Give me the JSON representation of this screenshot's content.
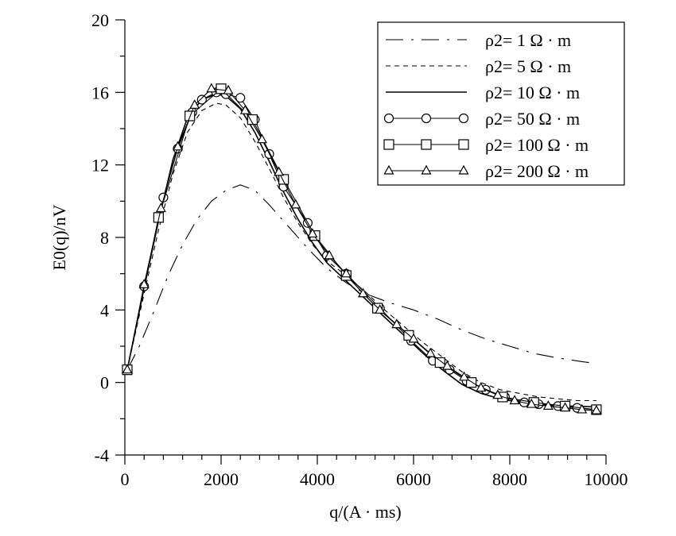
{
  "chart_data": {
    "type": "line",
    "xlabel": "q/(A · ms)",
    "ylabel": "E0(q)/nV",
    "xlim": [
      0,
      10000
    ],
    "ylim": [
      -4,
      20
    ],
    "xticks": [
      0,
      2000,
      4000,
      6000,
      8000,
      10000
    ],
    "yticks": [
      -4,
      0,
      4,
      8,
      12,
      16,
      20
    ],
    "grid": false,
    "legend_position": "top-right",
    "series": [
      {
        "name": "ρ2= 1 Ω · m",
        "line_style": "dashdot",
        "marker": "none",
        "x": [
          50,
          300,
          600,
          900,
          1200,
          1500,
          1800,
          2100,
          2400,
          2700,
          3000,
          3400,
          3800,
          4200,
          4600,
          5000,
          5500,
          6000,
          6500,
          7000,
          7500,
          8000,
          8500,
          9000,
          9500,
          9800
        ],
        "y": [
          0.7,
          2.0,
          3.9,
          5.9,
          7.6,
          9.0,
          10.0,
          10.6,
          10.9,
          10.6,
          9.8,
          8.6,
          7.4,
          6.3,
          5.5,
          4.9,
          4.4,
          4.0,
          3.5,
          2.9,
          2.4,
          2.0,
          1.6,
          1.35,
          1.15,
          1.05
        ]
      },
      {
        "name": "ρ2= 5 Ω · m",
        "line_style": "dashed",
        "marker": "none",
        "x": [
          50,
          400,
          700,
          1000,
          1300,
          1600,
          1900,
          2100,
          2400,
          2700,
          3000,
          3300,
          3600,
          3900,
          4200,
          4600,
          5000,
          5400,
          5800,
          6200,
          6600,
          7000,
          7400,
          7800,
          8200,
          8600,
          9000,
          9400,
          9800
        ],
        "y": [
          0.7,
          4.9,
          8.4,
          11.5,
          13.8,
          15.0,
          15.4,
          15.3,
          14.6,
          13.3,
          11.8,
          10.2,
          8.8,
          7.6,
          6.7,
          5.9,
          5.0,
          4.0,
          3.1,
          2.2,
          1.4,
          0.6,
          0.0,
          -0.4,
          -0.6,
          -0.8,
          -0.9,
          -1.0,
          -1.0
        ]
      },
      {
        "name": "ρ2= 10 Ω · m",
        "line_style": "solid",
        "marker": "none",
        "x": [
          50,
          400,
          700,
          1000,
          1300,
          1600,
          1900,
          2100,
          2400,
          2700,
          3000,
          3300,
          3600,
          3900,
          4200,
          4600,
          5000,
          5400,
          5800,
          6200,
          6600,
          7000,
          7400,
          7800,
          8200,
          8600,
          9000,
          9400,
          9800
        ],
        "y": [
          0.7,
          5.2,
          8.9,
          12.3,
          14.6,
          15.6,
          15.9,
          15.8,
          15.1,
          13.8,
          12.2,
          10.5,
          9.0,
          7.7,
          6.6,
          5.6,
          4.6,
          3.6,
          2.6,
          1.6,
          0.7,
          -0.1,
          -0.6,
          -0.9,
          -1.1,
          -1.2,
          -1.3,
          -1.3,
          -1.35
        ]
      },
      {
        "name": "ρ2= 50 Ω · m",
        "line_style": "solid",
        "marker": "circle",
        "x": [
          50,
          400,
          800,
          1100,
          1400,
          1600,
          1900,
          2100,
          2400,
          2700,
          3000,
          3300,
          3800,
          4200,
          4600,
          5300,
          5950,
          6400,
          6750,
          7100,
          7500,
          7900,
          8300,
          8600,
          9000,
          9400,
          9800
        ],
        "y": [
          0.7,
          5.3,
          10.2,
          12.9,
          14.9,
          15.6,
          16.0,
          15.9,
          15.7,
          14.5,
          12.6,
          10.8,
          8.8,
          7.0,
          6.0,
          4.1,
          2.3,
          1.2,
          0.7,
          0.1,
          -0.4,
          -0.8,
          -1.1,
          -1.2,
          -1.3,
          -1.4,
          -1.5
        ]
      },
      {
        "name": "ρ2= 100 Ω · m",
        "line_style": "solid",
        "marker": "square",
        "x": [
          50,
          700,
          1350,
          2000,
          2650,
          3300,
          3950,
          4600,
          5250,
          5900,
          6550,
          7200,
          7850,
          8500,
          9150,
          9800
        ],
        "y": [
          0.7,
          9.1,
          14.7,
          16.2,
          14.5,
          11.2,
          8.1,
          5.9,
          4.1,
          2.6,
          1.1,
          0.0,
          -0.8,
          -1.1,
          -1.3,
          -1.5
        ]
      },
      {
        "name": "ρ2= 200 Ω · m",
        "line_style": "solid",
        "marker": "triangle",
        "x": [
          50,
          400,
          750,
          1100,
          1450,
          1800,
          2150,
          2500,
          2850,
          3200,
          3550,
          3900,
          4250,
          4600,
          4950,
          5300,
          5650,
          6000,
          6350,
          6700,
          7050,
          7400,
          7750,
          8100,
          8450,
          8800,
          9150,
          9500,
          9800
        ],
        "y": [
          0.7,
          5.4,
          9.6,
          13.0,
          15.3,
          16.2,
          16.1,
          15.0,
          13.4,
          11.6,
          9.8,
          8.2,
          7.0,
          6.0,
          4.9,
          4.0,
          3.2,
          2.4,
          1.6,
          0.9,
          0.3,
          -0.3,
          -0.7,
          -1.0,
          -1.2,
          -1.3,
          -1.4,
          -1.5,
          -1.55
        ]
      }
    ]
  }
}
